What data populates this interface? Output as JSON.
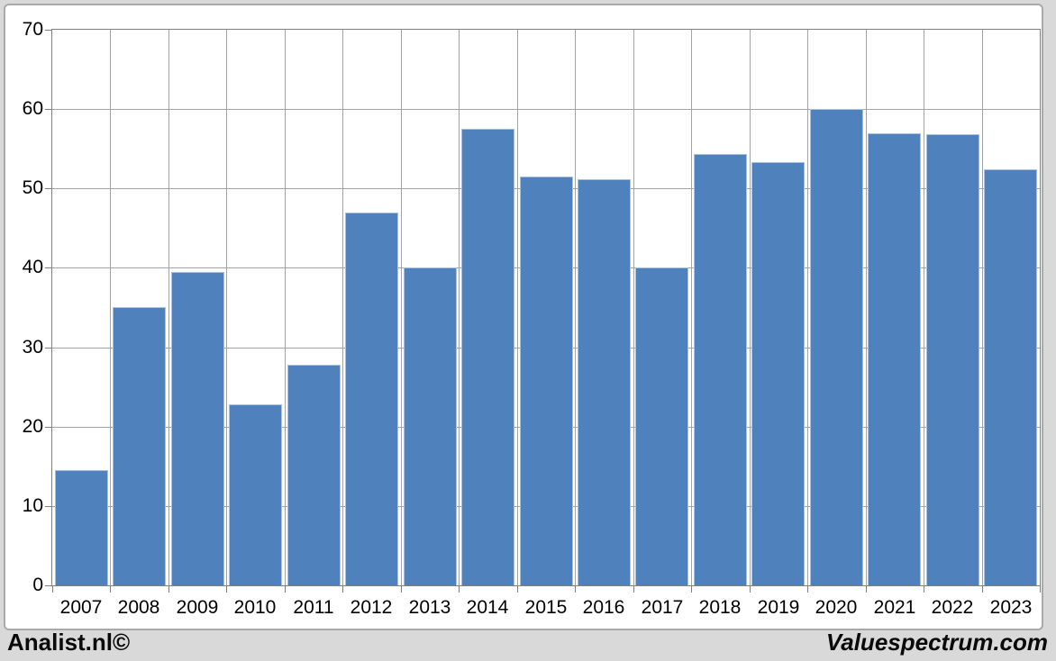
{
  "footer": {
    "left_brand": "Analist.nl©",
    "right_brand": "Valuespectrum.com"
  },
  "chart_data": {
    "type": "bar",
    "title": "",
    "xlabel": "",
    "ylabel": "",
    "categories": [
      "2007",
      "2008",
      "2009",
      "2010",
      "2011",
      "2012",
      "2013",
      "2014",
      "2015",
      "2016",
      "2017",
      "2018",
      "2019",
      "2020",
      "2021",
      "2022",
      "2023"
    ],
    "values": [
      14.5,
      35.0,
      39.5,
      22.8,
      27.8,
      47.0,
      40.1,
      57.5,
      51.5,
      51.2,
      40.1,
      54.4,
      53.3,
      60.0,
      57.0,
      56.8,
      52.4
    ],
    "ylim": [
      0,
      70
    ],
    "ytick_step": 10,
    "yticks": [
      0,
      10,
      20,
      30,
      40,
      50,
      60,
      70
    ],
    "grid": true,
    "legend": "none",
    "colors": {
      "bar_fill": "#4f81bd",
      "bar_border": "#a7c1e2",
      "gridline": "#a3a3a3",
      "plot_border": "#7f7f7f",
      "tick": "#7f7f7f",
      "page_background": "#d9d9d9",
      "panel_background": "#ffffff",
      "panel_border": "#a9a9a9",
      "text": "#000000"
    }
  }
}
